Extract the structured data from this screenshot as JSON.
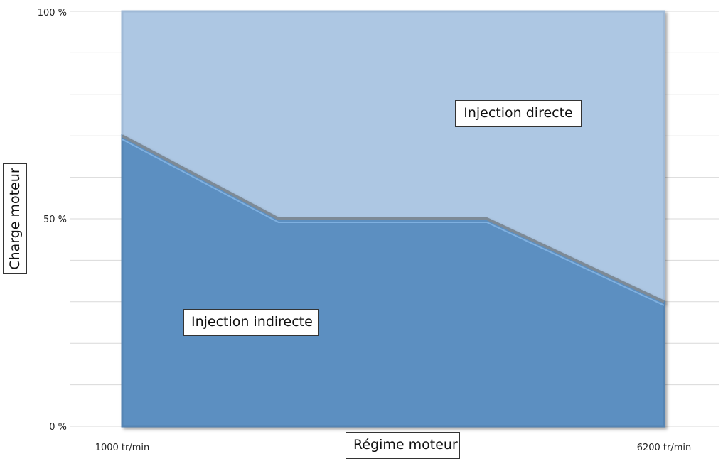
{
  "chart_data": {
    "type": "area",
    "xlabel": "Régime moteur",
    "ylabel": "Charge moteur",
    "x_tick_labels": [
      "1000 tr/min",
      "6200 tr/min"
    ],
    "y_tick_labels": [
      "0 %",
      "50 %",
      "100 %"
    ],
    "ylim": [
      0,
      100
    ],
    "x": [
      1000,
      2500,
      4500,
      6200
    ],
    "series": [
      {
        "name": "Injection indirecte",
        "values": [
          70,
          50,
          50,
          30
        ]
      },
      {
        "name": "Injection directe",
        "values": [
          30,
          50,
          50,
          70
        ]
      }
    ],
    "colors": {
      "lower": "#5b8fc1",
      "upper": "#adc7e3",
      "grid": "#d9d9d9"
    },
    "stacked": true,
    "grid": true,
    "annotations": [
      "Injection directe",
      "Injection indirecte"
    ]
  }
}
